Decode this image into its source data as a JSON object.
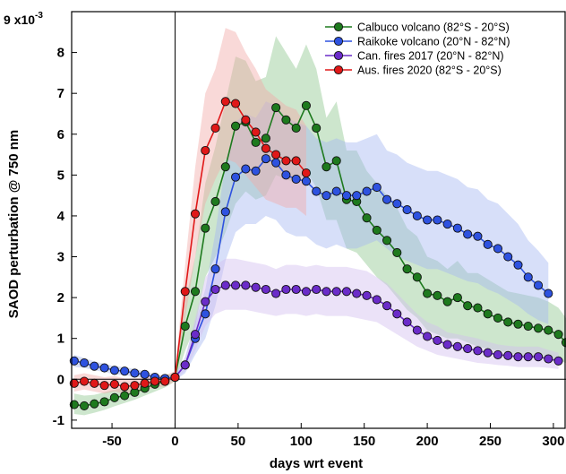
{
  "chart_data": {
    "type": "line",
    "ylabel": "SAOD perturbation @ 750 nm",
    "xlabel": "days wrt event",
    "y_exponent": "x10",
    "y_exponent_power": "-3",
    "xlim": [
      -82,
      310
    ],
    "ylim": [
      -1.2,
      9
    ],
    "x_ticks": [
      -50,
      0,
      50,
      100,
      150,
      200,
      250,
      300
    ],
    "x_tick_labels": [
      "-50",
      "0",
      "50",
      "100",
      "150",
      "200",
      "250",
      "300"
    ],
    "y_ticks": [
      -1,
      0,
      1,
      2,
      3,
      4,
      5,
      6,
      7,
      8,
      9
    ],
    "y_tick_labels": [
      "-1",
      "0",
      "1",
      "2",
      "3",
      "4",
      "5",
      "6",
      "7",
      "8",
      "9"
    ],
    "grid": false,
    "zero_lines": true,
    "legend_position": "top-right",
    "series": [
      {
        "name": "Calbuco volcano (82°S - 20°S)",
        "color": "#1e7a1e",
        "band_color": "#90c890",
        "x": [
          -80,
          -72,
          -64,
          -56,
          -48,
          -40,
          -32,
          -24,
          -16,
          -8,
          0,
          8,
          16,
          24,
          32,
          40,
          48,
          56,
          64,
          72,
          80,
          88,
          96,
          104,
          112,
          120,
          128,
          136,
          144,
          152,
          160,
          168,
          176,
          184,
          192,
          200,
          208,
          216,
          224,
          232,
          240,
          248,
          256,
          264,
          272,
          280,
          288,
          296,
          304,
          310
        ],
        "values": [
          -0.62,
          -0.65,
          -0.6,
          -0.55,
          -0.45,
          -0.4,
          -0.32,
          -0.22,
          -0.12,
          -0.05,
          0.05,
          1.3,
          2.15,
          3.7,
          4.35,
          5.2,
          6.2,
          6.3,
          5.8,
          5.9,
          6.65,
          6.35,
          6.15,
          6.7,
          6.15,
          5.2,
          5.35,
          4.4,
          4.35,
          3.95,
          3.65,
          3.4,
          3.1,
          2.7,
          2.5,
          2.1,
          2.05,
          1.9,
          2.0,
          1.8,
          1.75,
          1.6,
          1.5,
          1.4,
          1.35,
          1.3,
          1.25,
          1.2,
          1.1,
          0.9
        ],
        "lower": [
          -0.85,
          -0.88,
          -0.82,
          -0.75,
          -0.66,
          -0.58,
          -0.5,
          -0.4,
          -0.3,
          -0.2,
          -0.05,
          0.7,
          1.3,
          2.5,
          3.0,
          3.6,
          4.3,
          4.6,
          4.4,
          4.5,
          5.0,
          4.9,
          4.8,
          5.1,
          4.7,
          3.9,
          3.9,
          3.2,
          3.1,
          2.8,
          2.5,
          2.3,
          2.0,
          1.7,
          1.5,
          1.2,
          1.1,
          1.0,
          1.0,
          0.9,
          0.8,
          0.75,
          0.7,
          0.65,
          0.6,
          0.55,
          0.5,
          0.5,
          0.45,
          0.4
        ],
        "upper": [
          -0.35,
          -0.4,
          -0.38,
          -0.32,
          -0.25,
          -0.2,
          -0.12,
          -0.05,
          0.05,
          0.1,
          0.15,
          1.9,
          3.0,
          4.8,
          5.7,
          6.8,
          7.9,
          7.8,
          7.3,
          7.4,
          8.4,
          8.0,
          7.6,
          8.2,
          7.6,
          6.4,
          6.8,
          5.6,
          5.6,
          5.1,
          4.8,
          4.5,
          4.2,
          3.7,
          3.5,
          3.0,
          2.9,
          2.7,
          2.9,
          2.6,
          2.6,
          2.45,
          2.3,
          2.15,
          2.1,
          2.05,
          2.0,
          1.9,
          1.75,
          1.5
        ]
      },
      {
        "name": "Raikoke volcano (20°N - 82°N)",
        "color": "#2e52e0",
        "band_color": "#a6b8f2",
        "x": [
          -80,
          -72,
          -64,
          -56,
          -48,
          -40,
          -32,
          -24,
          -16,
          -8,
          0,
          8,
          16,
          24,
          32,
          40,
          48,
          56,
          64,
          72,
          80,
          88,
          96,
          104,
          112,
          120,
          128,
          136,
          144,
          152,
          160,
          168,
          176,
          184,
          192,
          200,
          208,
          216,
          224,
          232,
          240,
          248,
          256,
          264,
          272,
          280,
          288,
          296
        ],
        "values": [
          0.45,
          0.4,
          0.32,
          0.28,
          0.22,
          0.2,
          0.15,
          0.12,
          0.05,
          0.02,
          0.05,
          0.35,
          1.0,
          1.6,
          2.7,
          4.1,
          4.95,
          5.15,
          5.1,
          5.4,
          5.3,
          5.0,
          4.9,
          4.85,
          4.6,
          4.5,
          4.6,
          4.5,
          4.5,
          4.6,
          4.7,
          4.4,
          4.3,
          4.15,
          4.0,
          3.9,
          3.9,
          3.8,
          3.7,
          3.55,
          3.5,
          3.3,
          3.2,
          3.0,
          2.8,
          2.5,
          2.3,
          2.1
        ],
        "lower": [
          0.3,
          0.28,
          0.22,
          0.18,
          0.12,
          0.1,
          0.06,
          0.03,
          -0.02,
          -0.05,
          -0.03,
          0.15,
          0.6,
          1.0,
          1.8,
          2.9,
          3.6,
          3.8,
          3.8,
          4.0,
          3.9,
          3.6,
          3.5,
          3.5,
          3.3,
          3.2,
          3.3,
          3.2,
          3.2,
          3.3,
          3.4,
          3.2,
          3.0,
          2.9,
          2.8,
          2.7,
          2.7,
          2.6,
          2.5,
          2.4,
          2.35,
          2.2,
          2.1,
          1.95,
          1.8,
          1.6,
          1.45,
          1.35
        ],
        "upper": [
          0.6,
          0.52,
          0.44,
          0.38,
          0.32,
          0.3,
          0.25,
          0.2,
          0.12,
          0.08,
          0.1,
          0.55,
          1.4,
          2.2,
          3.6,
          5.3,
          6.3,
          6.5,
          6.4,
          6.8,
          6.7,
          6.4,
          6.3,
          6.2,
          5.9,
          5.8,
          5.9,
          5.8,
          5.8,
          5.9,
          6.0,
          5.6,
          5.5,
          5.3,
          5.2,
          5.1,
          5.1,
          5.0,
          4.9,
          4.7,
          4.65,
          4.4,
          4.3,
          4.05,
          3.8,
          3.4,
          3.15,
          2.85
        ]
      },
      {
        "name": "Can. fires 2017 (20°N - 82°N)",
        "color": "#6b2cc9",
        "band_color": "#d2bff0",
        "x": [
          0,
          8,
          16,
          24,
          32,
          40,
          48,
          56,
          64,
          72,
          80,
          88,
          96,
          104,
          112,
          120,
          128,
          136,
          144,
          152,
          160,
          168,
          176,
          184,
          192,
          200,
          208,
          216,
          224,
          232,
          240,
          248,
          256,
          264,
          272,
          280,
          288,
          296,
          304
        ],
        "values": [
          0.05,
          0.35,
          1.1,
          1.9,
          2.2,
          2.3,
          2.3,
          2.3,
          2.25,
          2.2,
          2.1,
          2.2,
          2.2,
          2.15,
          2.2,
          2.15,
          2.15,
          2.15,
          2.1,
          2.05,
          1.95,
          1.8,
          1.6,
          1.4,
          1.2,
          1.05,
          0.95,
          0.85,
          0.8,
          0.75,
          0.7,
          0.65,
          0.6,
          0.58,
          0.55,
          0.55,
          0.55,
          0.5,
          0.45
        ],
        "lower": [
          0.0,
          0.2,
          0.7,
          1.3,
          1.6,
          1.7,
          1.7,
          1.7,
          1.65,
          1.6,
          1.55,
          1.6,
          1.6,
          1.55,
          1.6,
          1.55,
          1.55,
          1.55,
          1.5,
          1.45,
          1.4,
          1.25,
          1.1,
          0.95,
          0.8,
          0.7,
          0.6,
          0.55,
          0.5,
          0.45,
          0.4,
          0.38,
          0.35,
          0.33,
          0.3,
          0.3,
          0.3,
          0.28,
          0.25
        ],
        "upper": [
          0.15,
          0.5,
          1.5,
          2.5,
          2.8,
          2.95,
          2.95,
          2.9,
          2.85,
          2.8,
          2.7,
          2.8,
          2.8,
          2.75,
          2.8,
          2.75,
          2.75,
          2.75,
          2.7,
          2.65,
          2.5,
          2.35,
          2.1,
          1.85,
          1.6,
          1.4,
          1.3,
          1.15,
          1.1,
          1.05,
          1.0,
          0.92,
          0.85,
          0.82,
          0.8,
          0.8,
          0.8,
          0.72,
          0.65
        ]
      },
      {
        "name": "Aus. fires 2020 (82°S - 20°S)",
        "color": "#e01818",
        "band_color": "#f2aaa8",
        "x": [
          -80,
          -72,
          -64,
          -56,
          -48,
          -40,
          -32,
          -24,
          -16,
          -8,
          0,
          8,
          16,
          24,
          32,
          40,
          48,
          56,
          64,
          72,
          80,
          88,
          96,
          104
        ],
        "values": [
          -0.1,
          -0.05,
          -0.1,
          -0.15,
          -0.12,
          -0.18,
          -0.15,
          -0.1,
          -0.05,
          -0.05,
          0.05,
          2.15,
          4.05,
          5.6,
          6.15,
          6.8,
          6.75,
          6.35,
          6.05,
          5.65,
          5.5,
          5.35,
          5.35,
          5.05
        ],
        "lower": [
          -0.3,
          -0.25,
          -0.3,
          -0.35,
          -0.3,
          -0.35,
          -0.32,
          -0.28,
          -0.2,
          -0.18,
          -0.05,
          1.5,
          3.0,
          4.3,
          4.9,
          5.4,
          5.3,
          5.0,
          4.7,
          4.4,
          4.3,
          4.2,
          4.2,
          4.0
        ],
        "upper": [
          0.1,
          0.15,
          0.1,
          0.05,
          0.08,
          0.02,
          0.02,
          0.05,
          0.1,
          0.1,
          0.2,
          2.8,
          5.2,
          7.0,
          7.6,
          8.6,
          8.5,
          8.0,
          7.6,
          7.1,
          6.9,
          6.7,
          6.6,
          6.2
        ]
      }
    ]
  }
}
